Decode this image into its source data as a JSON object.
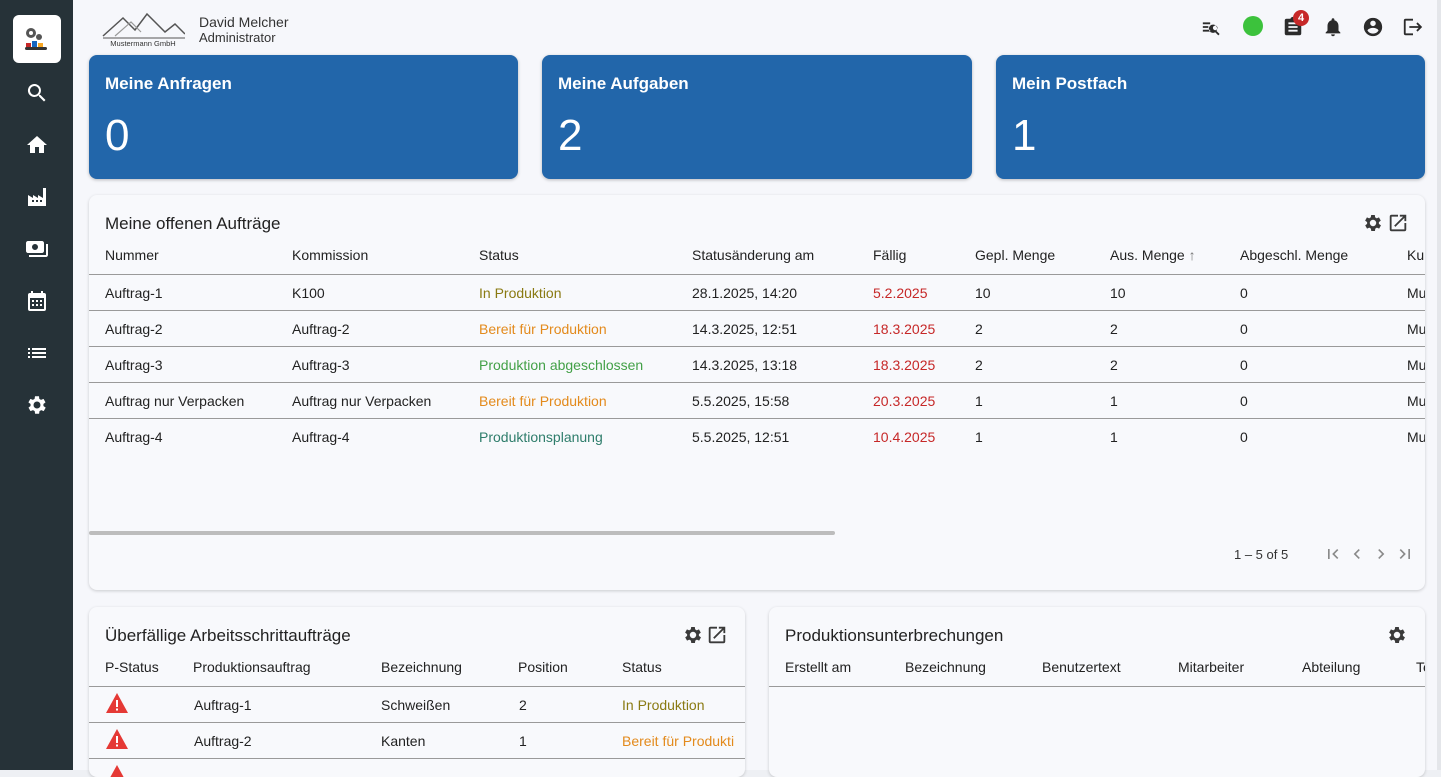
{
  "header": {
    "company_logo_text": "Mustermann GmbH",
    "user_name": "David Melcher",
    "user_role": "Administrator",
    "notification_badge": "4",
    "status_color": "#3cc23c"
  },
  "sidebar": {
    "items": [
      {
        "icon": "search-icon"
      },
      {
        "icon": "home-icon"
      },
      {
        "icon": "factory-icon"
      },
      {
        "icon": "payments-icon"
      },
      {
        "icon": "calendar-icon"
      },
      {
        "icon": "list-icon"
      },
      {
        "icon": "settings-icon"
      }
    ]
  },
  "kpis": [
    {
      "title": "Meine Anfragen",
      "value": "0"
    },
    {
      "title": "Meine Aufgaben",
      "value": "2"
    },
    {
      "title": "Mein Postfach",
      "value": "1"
    }
  ],
  "orders": {
    "title": "Meine offenen Aufträge",
    "columns": [
      "Nummer",
      "Kommission",
      "Status",
      "Statusänderung am",
      "Fällig",
      "Gepl. Menge",
      "Aus. Menge",
      "Abgeschl. Menge",
      "Ku"
    ],
    "sort_indicator": "↑",
    "rows": [
      {
        "nummer": "Auftrag-1",
        "kommission": "K100",
        "status": "In Produktion",
        "status_color": "#8a7a12",
        "changed": "28.1.2025, 14:20",
        "due": "5.2.2025",
        "planned": "10",
        "issued": "10",
        "done": "0",
        "ku": "Mu"
      },
      {
        "nummer": "Auftrag-2",
        "kommission": "Auftrag-2",
        "status": "Bereit für Produktion",
        "status_color": "#e38a1c",
        "changed": "14.3.2025, 12:51",
        "due": "18.3.2025",
        "planned": "2",
        "issued": "2",
        "done": "0",
        "ku": "Mu"
      },
      {
        "nummer": "Auftrag-3",
        "kommission": "Auftrag-3",
        "status": "Produktion abgeschlossen",
        "status_color": "#43a047",
        "changed": "14.3.2025, 13:18",
        "due": "18.3.2025",
        "planned": "2",
        "issued": "2",
        "done": "0",
        "ku": "Mu"
      },
      {
        "nummer": "Auftrag nur Verpacken",
        "kommission": "Auftrag nur Verpacken",
        "status": "Bereit für Produktion",
        "status_color": "#e38a1c",
        "changed": "5.5.2025, 15:58",
        "due": "20.3.2025",
        "planned": "1",
        "issued": "1",
        "done": "0",
        "ku": "Mu"
      },
      {
        "nummer": "Auftrag-4",
        "kommission": "Auftrag-4",
        "status": "Produktionsplanung",
        "status_color": "#2e7d6b",
        "changed": "5.5.2025, 12:51",
        "due": "10.4.2025",
        "planned": "1",
        "issued": "1",
        "done": "0",
        "ku": "Mu"
      }
    ],
    "due_color": "#c62828",
    "pagination": "1 – 5 of 5"
  },
  "overdue": {
    "title": "Überfällige Arbeitsschrittaufträge",
    "columns": [
      "P-Status",
      "Produktionsauftrag",
      "Bezeichnung",
      "Position",
      "Status"
    ],
    "rows": [
      {
        "p_status": "warning-icon",
        "order": "Auftrag-1",
        "name": "Schweißen",
        "position": "2",
        "status": "In Produktion",
        "status_color": "#8a7a12"
      },
      {
        "p_status": "warning-icon",
        "order": "Auftrag-2",
        "name": "Kanten",
        "position": "1",
        "status": "Bereit für Produkti",
        "status_color": "#e38a1c"
      }
    ]
  },
  "interruptions": {
    "title": "Produktionsunterbrechungen",
    "columns": [
      "Erstellt am",
      "Bezeichnung",
      "Benutzertext",
      "Mitarbeiter",
      "Abteilung",
      "Te"
    ]
  }
}
